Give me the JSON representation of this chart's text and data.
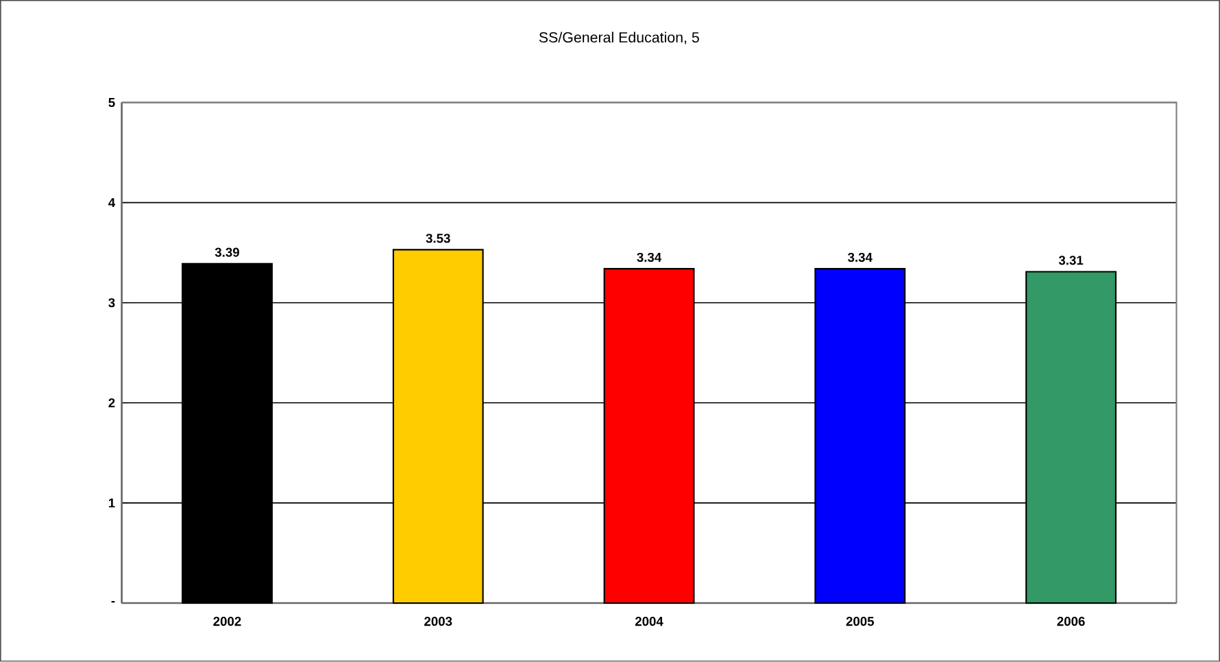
{
  "chart_data": {
    "type": "bar",
    "title": "SS/General Education, 5",
    "categories": [
      "2002",
      "2003",
      "2004",
      "2005",
      "2006"
    ],
    "values": [
      3.39,
      3.53,
      3.34,
      3.34,
      3.31
    ],
    "colors": [
      "#000000",
      "#ffcc00",
      "#ff0000",
      "#0000ff",
      "#339966"
    ],
    "ylim": [
      0,
      5
    ],
    "yticks": [
      {
        "value": 0,
        "label": "-"
      },
      1,
      2,
      3,
      4,
      5
    ],
    "grid": "y",
    "data_labels": true
  }
}
